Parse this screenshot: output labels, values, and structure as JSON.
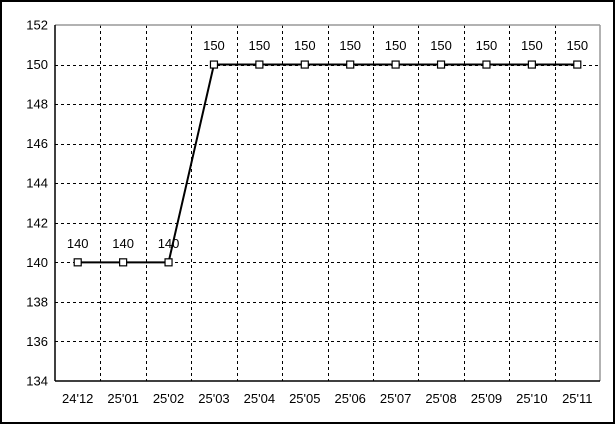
{
  "window": {
    "background": "#ffffff",
    "outer_border_color": "#000000"
  },
  "chart_data": {
    "type": "line",
    "title": "",
    "xlabel": "",
    "ylabel": "",
    "categories": [
      "24'12",
      "25'01",
      "25'02",
      "25'03",
      "25'04",
      "25'05",
      "25'06",
      "25'07",
      "25'08",
      "25'09",
      "25'10",
      "25'11"
    ],
    "values": [
      140,
      140,
      140,
      150,
      150,
      150,
      150,
      150,
      150,
      150,
      150,
      150
    ],
    "data_labels": [
      "140",
      "140",
      "140",
      "150",
      "150",
      "150",
      "150",
      "150",
      "150",
      "150",
      "150",
      "150"
    ],
    "ylim": [
      134,
      152
    ],
    "ytick_step": 2,
    "yticks": [
      "134",
      "136",
      "138",
      "140",
      "142",
      "144",
      "146",
      "148",
      "150",
      "152"
    ],
    "grid": "dashed",
    "legend": "none",
    "marker": "open-square",
    "line_color": "#000000",
    "grid_color": "#000000",
    "axis_color": "#000000",
    "plot_border_top_right_color": "#999999",
    "label_color": "#000000",
    "marker_fill": "#ffffff"
  }
}
